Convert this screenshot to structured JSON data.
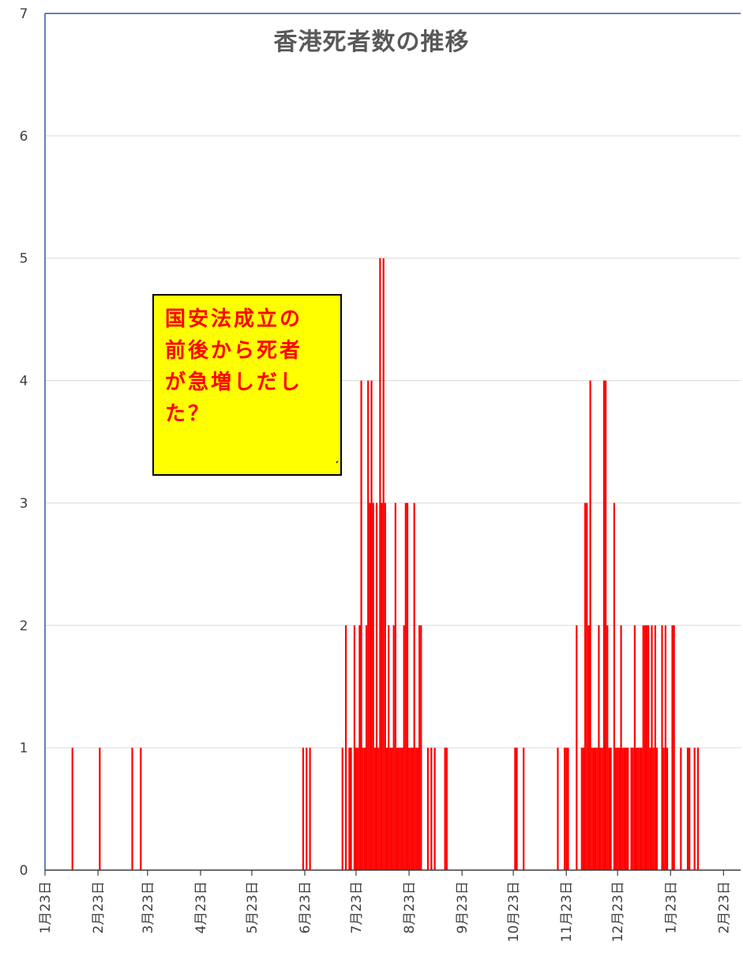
{
  "chart_data": {
    "type": "bar",
    "title": "香港死者数の推移",
    "xlabel": "",
    "ylabel": "",
    "ylim": [
      0,
      7
    ],
    "y_ticks": [
      0,
      1,
      2,
      3,
      4,
      5,
      6,
      7
    ],
    "x_tick_labels": [
      "1月23日",
      "2月23日",
      "3月23日",
      "4月23日",
      "5月23日",
      "6月23日",
      "7月23日",
      "8月23日",
      "9月23日",
      "10月23日",
      "11月23日",
      "12月23日",
      "1月23日",
      "2月23日"
    ],
    "x_axis": {
      "start": "2020-01-23",
      "end": "2021-03-05"
    },
    "grid": true,
    "legend": "none",
    "bar_color": "#ff0000",
    "series": [
      {
        "name": "",
        "points": [
          [
            "2020-02-08",
            1
          ],
          [
            "2020-02-24",
            1
          ],
          [
            "2020-03-14",
            1
          ],
          [
            "2020-03-19",
            1
          ],
          [
            "2020-06-22",
            1
          ],
          [
            "2020-06-24",
            1
          ],
          [
            "2020-06-26",
            1
          ],
          [
            "2020-07-15",
            1
          ],
          [
            "2020-07-17",
            2
          ],
          [
            "2020-07-19",
            1
          ],
          [
            "2020-07-20",
            1
          ],
          [
            "2020-07-22",
            2
          ],
          [
            "2020-07-23",
            1
          ],
          [
            "2020-07-24",
            1
          ],
          [
            "2020-07-25",
            2
          ],
          [
            "2020-07-26",
            4
          ],
          [
            "2020-07-27",
            1
          ],
          [
            "2020-07-28",
            1
          ],
          [
            "2020-07-29",
            2
          ],
          [
            "2020-07-30",
            4
          ],
          [
            "2020-07-31",
            3
          ],
          [
            "2020-08-01",
            4
          ],
          [
            "2020-08-02",
            3
          ],
          [
            "2020-08-03",
            1
          ],
          [
            "2020-08-04",
            3
          ],
          [
            "2020-08-05",
            1
          ],
          [
            "2020-08-06",
            5
          ],
          [
            "2020-08-07",
            3
          ],
          [
            "2020-08-08",
            5
          ],
          [
            "2020-08-09",
            3
          ],
          [
            "2020-08-10",
            1
          ],
          [
            "2020-08-11",
            2
          ],
          [
            "2020-08-12",
            1
          ],
          [
            "2020-08-13",
            1
          ],
          [
            "2020-08-14",
            2
          ],
          [
            "2020-08-15",
            3
          ],
          [
            "2020-08-16",
            1
          ],
          [
            "2020-08-17",
            1
          ],
          [
            "2020-08-18",
            1
          ],
          [
            "2020-08-19",
            1
          ],
          [
            "2020-08-20",
            2
          ],
          [
            "2020-08-21",
            3
          ],
          [
            "2020-08-22",
            3
          ],
          [
            "2020-08-23",
            1
          ],
          [
            "2020-08-24",
            1
          ],
          [
            "2020-08-25",
            1
          ],
          [
            "2020-08-26",
            3
          ],
          [
            "2020-08-27",
            1
          ],
          [
            "2020-08-28",
            1
          ],
          [
            "2020-08-29",
            2
          ],
          [
            "2020-08-30",
            2
          ],
          [
            "2020-09-03",
            1
          ],
          [
            "2020-09-05",
            1
          ],
          [
            "2020-09-07",
            1
          ],
          [
            "2020-09-13",
            1
          ],
          [
            "2020-09-14",
            1
          ],
          [
            "2020-10-24",
            1
          ],
          [
            "2020-10-25",
            1
          ],
          [
            "2020-10-29",
            1
          ],
          [
            "2020-11-18",
            1
          ],
          [
            "2020-11-22",
            1
          ],
          [
            "2020-11-23",
            1
          ],
          [
            "2020-11-24",
            1
          ],
          [
            "2020-11-29",
            2
          ],
          [
            "2020-12-02",
            1
          ],
          [
            "2020-12-03",
            1
          ],
          [
            "2020-12-04",
            3
          ],
          [
            "2020-12-05",
            3
          ],
          [
            "2020-12-06",
            2
          ],
          [
            "2020-12-07",
            4
          ],
          [
            "2020-12-08",
            1
          ],
          [
            "2020-12-09",
            1
          ],
          [
            "2020-12-10",
            1
          ],
          [
            "2020-12-11",
            1
          ],
          [
            "2020-12-12",
            2
          ],
          [
            "2020-12-13",
            1
          ],
          [
            "2020-12-14",
            1
          ],
          [
            "2020-12-15",
            4
          ],
          [
            "2020-12-16",
            4
          ],
          [
            "2020-12-17",
            2
          ],
          [
            "2020-12-18",
            1
          ],
          [
            "2020-12-19",
            1
          ],
          [
            "2020-12-21",
            3
          ],
          [
            "2020-12-22",
            1
          ],
          [
            "2020-12-23",
            1
          ],
          [
            "2020-12-24",
            1
          ],
          [
            "2020-12-25",
            2
          ],
          [
            "2020-12-26",
            1
          ],
          [
            "2020-12-27",
            1
          ],
          [
            "2020-12-28",
            1
          ],
          [
            "2020-12-29",
            1
          ],
          [
            "2020-12-31",
            1
          ],
          [
            "2021-01-01",
            1
          ],
          [
            "2021-01-02",
            2
          ],
          [
            "2021-01-03",
            1
          ],
          [
            "2021-01-04",
            1
          ],
          [
            "2021-01-05",
            1
          ],
          [
            "2021-01-06",
            1
          ],
          [
            "2021-01-07",
            2
          ],
          [
            "2021-01-08",
            2
          ],
          [
            "2021-01-09",
            2
          ],
          [
            "2021-01-10",
            2
          ],
          [
            "2021-01-11",
            1
          ],
          [
            "2021-01-12",
            2
          ],
          [
            "2021-01-13",
            1
          ],
          [
            "2021-01-14",
            2
          ],
          [
            "2021-01-15",
            1
          ],
          [
            "2021-01-18",
            2
          ],
          [
            "2021-01-19",
            1
          ],
          [
            "2021-01-20",
            2
          ],
          [
            "2021-01-21",
            1
          ],
          [
            "2021-01-24",
            2
          ],
          [
            "2021-01-25",
            2
          ],
          [
            "2021-01-29",
            1
          ],
          [
            "2021-02-02",
            1
          ],
          [
            "2021-02-03",
            1
          ],
          [
            "2021-02-06",
            1
          ],
          [
            "2021-02-08",
            1
          ]
        ]
      }
    ],
    "annotations": [
      {
        "text": "国安法成立の\n前後から死者\nが急増しだし\nた？",
        "background": "#ffff00",
        "text_color": "#ff0000"
      }
    ]
  }
}
